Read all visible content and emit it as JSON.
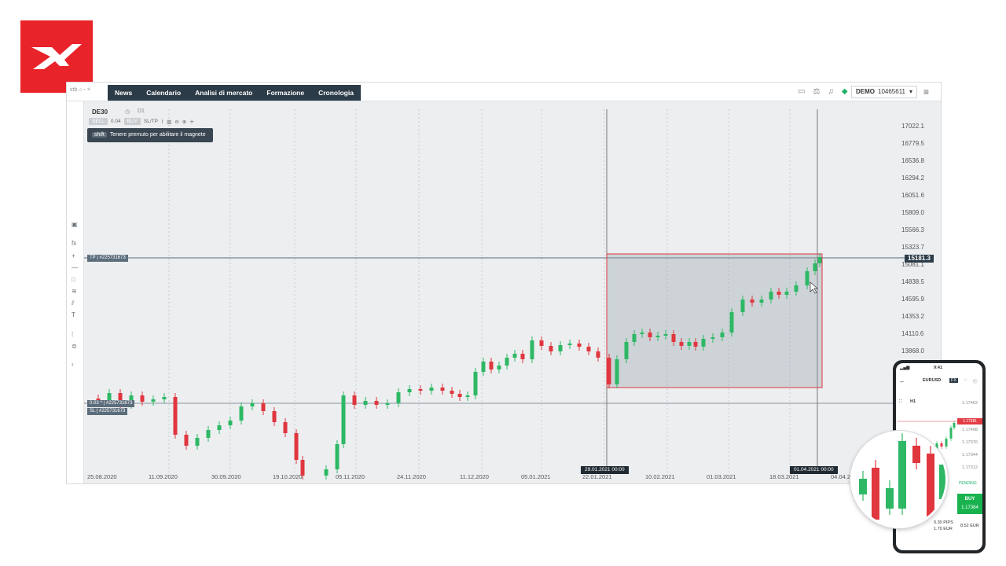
{
  "brand": {
    "color": "#e8232a",
    "icon": "x-logo-icon"
  },
  "platform": {
    "tabs": [
      "News",
      "Calendario",
      "Analisi di mercato",
      "Formazione",
      "Cronologia"
    ],
    "account_type": "DEMO",
    "account_number": "10465611",
    "header_icons": [
      "layout-icon",
      "scale-icon",
      "bell-icon",
      "diamond-icon",
      "menu-icon"
    ]
  },
  "chart_panel": {
    "symbol": "DE30",
    "timeframe": "D1",
    "volume": "0.04",
    "sltp_label": "SL/TP",
    "tooltip_key": "shift",
    "tooltip_text": "Tenere premuto per abilitare il magnete"
  },
  "order_lines": {
    "tp_tag": "TP | #225731673",
    "sl_tag": "SL | #225731673",
    "entry_tag": "0.03 ^ | #225731673"
  },
  "chart_data": {
    "type": "candlestick",
    "y_axis_labels": [
      "17022.1",
      "16779.5",
      "16536.8",
      "16294.2",
      "16051.6",
      "15809.0",
      "15566.3",
      "15323.7",
      "15081.1",
      "14838.5",
      "14595.9",
      "14353.2",
      "14110.6",
      "13868.0"
    ],
    "current_price": "15181.3",
    "x_axis_labels": [
      "25.08.2020",
      "11.09.2020",
      "30.09.2020",
      "19.10.2020",
      "05.11.2020",
      "24.11.2020",
      "11.12.2020",
      "05.01.2021",
      "22.01.2021",
      "10.02.2021",
      "01.03.2021",
      "18.03.2021",
      "04.04.2"
    ],
    "range_start_label": "29.01.2021 00:00",
    "range_end_label": "01.04.2021 00:00",
    "up_color": "#2eb865",
    "down_color": "#e0363e",
    "grid": false
  },
  "phone": {
    "time": "9:41",
    "symbol": "EURUSD",
    "tag": "FX",
    "timeframe": "H1",
    "price_labels": [
      "1.17462",
      "1.17381",
      "1.17408",
      "1.17376",
      "1.17344",
      "1.17312"
    ],
    "buy_label": "BUY",
    "buy_price": "1.17384",
    "pending_label": "PENDING",
    "stats": [
      "0.30 PIPS",
      "1.70 EUR",
      "8.52 EUR"
    ]
  }
}
